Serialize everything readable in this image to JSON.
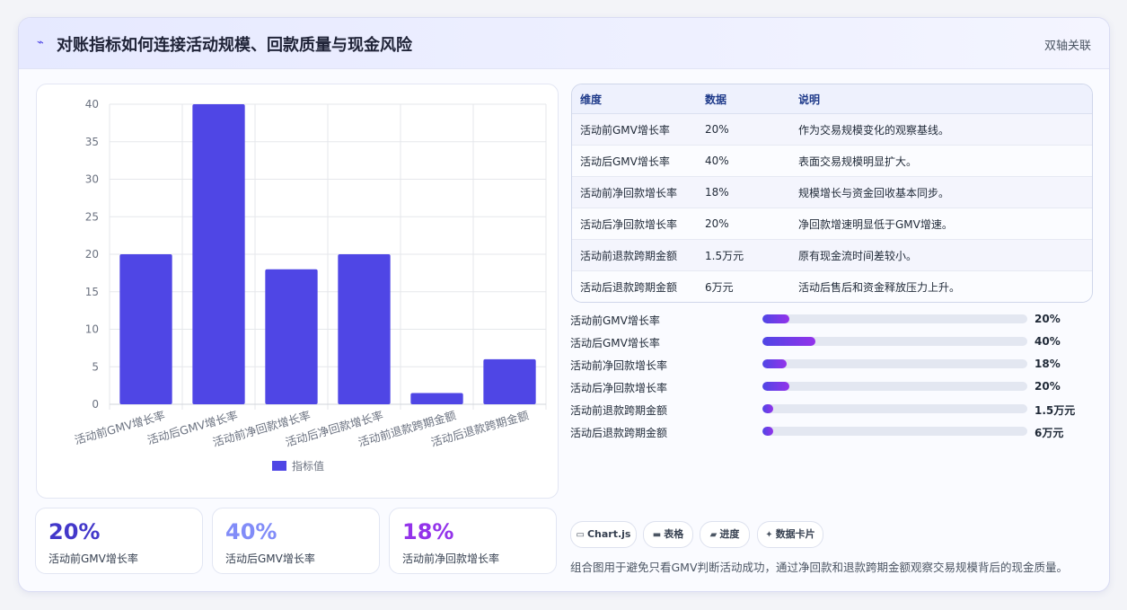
{
  "header": {
    "title": "对账指标如何连接活动规模、回款质量与现金风险",
    "badge": "双轴关联",
    "icon": "trend-line-icon"
  },
  "chart_data": {
    "type": "bar",
    "categories": [
      "活动前GMV增长率",
      "活动后GMV增长率",
      "活动前净回款增长率",
      "活动后净回款增长率",
      "活动前退款跨期金额",
      "活动后退款跨期金额"
    ],
    "series": [
      {
        "name": "指标值",
        "values": [
          20,
          40,
          18,
          20,
          1.5,
          6
        ],
        "color": "#4f46e5"
      }
    ],
    "ylim": [
      0,
      40
    ],
    "yticks": [
      0,
      5,
      10,
      15,
      20,
      25,
      30,
      35,
      40
    ],
    "grid": true,
    "legend": "bottom"
  },
  "table": {
    "headers": [
      "维度",
      "数据",
      "说明"
    ],
    "rows": [
      [
        "活动前GMV增长率",
        "20%",
        "作为交易规模变化的观察基线。"
      ],
      [
        "活动后GMV增长率",
        "40%",
        "表面交易规模明显扩大。"
      ],
      [
        "活动前净回款增长率",
        "18%",
        "规模增长与资金回收基本同步。"
      ],
      [
        "活动后净回款增长率",
        "20%",
        "净回款增速明显低于GMV增速。"
      ],
      [
        "活动前退款跨期金额",
        "1.5万元",
        "原有现金流时间差较小。"
      ],
      [
        "活动后退款跨期金额",
        "6万元",
        "活动后售后和资金释放压力上升。"
      ]
    ]
  },
  "progress": [
    {
      "label": "活动前GMV增长率",
      "value": "20%",
      "fraction": 0.1
    },
    {
      "label": "活动后GMV增长率",
      "value": "40%",
      "fraction": 0.2
    },
    {
      "label": "活动前净回款增长率",
      "value": "18%",
      "fraction": 0.09
    },
    {
      "label": "活动后净回款增长率",
      "value": "20%",
      "fraction": 0.1
    },
    {
      "label": "活动前退款跨期金额",
      "value": "1.5万元",
      "fraction": 0.04
    },
    {
      "label": "活动后退款跨期金额",
      "value": "6万元",
      "fraction": 0.04
    }
  ],
  "kpis": [
    {
      "value": "20%",
      "label": "活动前GMV增长率",
      "color": "#4338ca"
    },
    {
      "value": "40%",
      "label": "活动后GMV增长率",
      "color": "#818cf8"
    },
    {
      "value": "18%",
      "label": "活动前净回款增长率",
      "color": "#9333ea"
    }
  ],
  "tags": [
    {
      "icon": "▭",
      "label": "Chart.js",
      "icon_name": "chart-icon"
    },
    {
      "icon": "▬",
      "label": "表格",
      "icon_name": "table-icon"
    },
    {
      "icon": "▰",
      "label": "进度",
      "icon_name": "progress-icon"
    },
    {
      "icon": "✦",
      "label": "数据卡片",
      "icon_name": "sparkle-icon"
    }
  ],
  "footnote": "组合图用于避免只看GMV判断活动成功，通过净回款和退款跨期金额观察交易规模背后的现金质量。"
}
